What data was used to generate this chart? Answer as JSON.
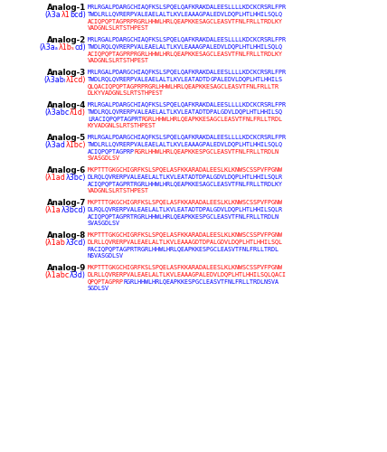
{
  "bg": "#ffffff",
  "analogs": [
    {
      "name": "Analog-1",
      "sublabel": [
        [
          "(λ3a",
          "#0000ff"
        ],
        [
          "λ1",
          "#ff0000"
        ],
        [
          "bcd)",
          "#0000ff"
        ]
      ],
      "seq": [
        [
          [
            "MRLRGALPDARGCHIAQFKSLSPQELQAFKRAKDALEESLLLLKDCKCRSRLFPR",
            "#0000ff"
          ]
        ],
        [
          [
            "TWDLRLLQVRERPVALEAELALTLKVLEAAAGPALEDVLDQPLHTLHHILSQLQ",
            "#0000ff"
          ]
        ],
        [
          [
            "ACIQPQPTAGPRPRGRLHHWLHRLQEAPKKESAGCLEASVTFNLFRLLTRDLKY",
            "#ff0000"
          ]
        ],
        [
          [
            "VADGNLSLRTSTHPEST",
            "#ff0000"
          ]
        ]
      ]
    },
    {
      "name": "Analog-2",
      "sublabel": [
        [
          "(λ3aₐ",
          "#0000ff"
        ],
        [
          "λ1bₛ",
          "#ff0000"
        ],
        [
          "cd)",
          "#0000ff"
        ]
      ],
      "seq": [
        [
          [
            "MRLRGALPDARGCHIAQFKSLSPQELQAFKRAKDALEESLLLLKDCKCRSRLFPR",
            "#0000ff"
          ]
        ],
        [
          [
            "TWDLRQLQVRERPVALEAELALTLKVLEAAAGPALEDVLDQPLHTLHHILSQLQ",
            "#0000ff"
          ]
        ],
        [
          [
            "ACIQPQPTAGPRPRGRLHHWLHRLQEAPKKESAGCLEASVTFNLFRLLTRDLKY",
            "#ff0000"
          ]
        ],
        [
          [
            "VADGNLSLRTSTHPEST",
            "#ff0000"
          ]
        ]
      ]
    },
    {
      "name": "Analog-3",
      "sublabel": [
        [
          "(λ3abₗ",
          "#0000ff"
        ],
        [
          "λ1cd)",
          "#ff0000"
        ]
      ],
      "seq": [
        [
          [
            "MRLRGALPDARGCHIAQFKSLSPQELQAFKRAKDALEESLLLLKDCKCRSRLFPR",
            "#0000ff"
          ]
        ],
        [
          [
            "TWDLRQLQVRERPVALEAELALTLKVLEATADTD",
            "#0000ff"
          ],
          [
            "GPALEDVLDQPLHTLHHILS",
            "#0000ff"
          ]
        ],
        [
          [
            "QLQACIQPQPTAGPRPRGRLHHWLHRLQEAPKKESAGCLEASVTFNLFRLLTR",
            "#ff0000"
          ]
        ],
        [
          [
            "DLKYVADGNLSLRTSTHPEST",
            "#ff0000"
          ]
        ]
      ]
    },
    {
      "name": "Analog-4",
      "sublabel": [
        [
          "(λ3abc",
          "#0000ff"
        ],
        [
          "λ1d)",
          "#ff0000"
        ]
      ],
      "seq": [
        [
          [
            "MRLRGALPDARGCHIAQFKSLSPQELQAFKRAKDALEESLLLLKDCKCRSRLFPR",
            "#0000ff"
          ]
        ],
        [
          [
            "TWDLRQLQVRERPVALEAELALTLKVLEATADTDPALGDVLDQPLHTLHHILSQ",
            "#0000ff"
          ]
        ],
        [
          [
            "LRACIQPQPTAGPRT",
            "#0000ff"
          ],
          [
            "RGRLHHWLHRLQEAPKKESAGCLEASVTFNLFRLLTRDL",
            "#ff0000"
          ]
        ],
        [
          [
            "KYVADGNLSLRTSTHPEST",
            "#ff0000"
          ]
        ]
      ]
    },
    {
      "name": "Analog-5",
      "sublabel": [
        [
          "(λ3ad",
          "#0000ff"
        ],
        [
          "λ1bc)",
          "#ff0000"
        ]
      ],
      "seq": [
        [
          [
            "MRLRGALPDARGCHIAQFKSLSPQELQAFKRAKDALEESLLLLKDCKCRSRLFPR",
            "#0000ff"
          ]
        ],
        [
          [
            "TWDLRLLQVRERPVALEAELALTLKVLEAAAGPALEDVLDQPLHTLHHILSQLQ",
            "#0000ff"
          ]
        ],
        [
          [
            "ACIQPQPTAGPRP",
            "#0000ff"
          ],
          [
            "RGRLHHWLHRLQEAPKKESPGCLEASVTFNLFRLLTRDLN",
            "#ff0000"
          ]
        ],
        [
          [
            "SVASGDLSV",
            "#ff0000"
          ]
        ]
      ]
    },
    {
      "name": "Analog-6",
      "sublabel": [
        [
          "(λ1ad",
          "#ff0000"
        ],
        [
          "λ3bc)",
          "#0000ff"
        ]
      ],
      "seq": [
        [
          [
            "MKPTTTGKGCHIGRFKSLSPQELASFKKARADALEESLKLKNWSCSSPVFPGNW",
            "#ff0000"
          ]
        ],
        [
          [
            "DLRQLQVRERPVALEAELALTLKVLEATADTDPALGDVLDQPLHTLHHILSQLR",
            "#0000ff"
          ]
        ],
        [
          [
            "ACIQPQPTAGPRTRGRLHHWLHRLQEAPKKESAGCLEASVTFNLFRLLTRDLKY",
            "#0000ff"
          ]
        ],
        [
          [
            "VADGNLSLRTSTHPEST",
            "#ff0000"
          ]
        ]
      ]
    },
    {
      "name": "Analog-7",
      "sublabel": [
        [
          "(λ1a",
          "#ff0000"
        ],
        [
          "λ3bcd)",
          "#0000ff"
        ]
      ],
      "seq": [
        [
          [
            "MKPTTTGKGCHIGRFKSLSPQELASFKKARADALEESLKLKNWSCSSPVFPGNW",
            "#ff0000"
          ]
        ],
        [
          [
            "DLRQLQVRERPVALEAELALTLKVLEATADTDPALGDVLDQPLHTLHHILSQLR",
            "#0000ff"
          ]
        ],
        [
          [
            "ACIQPQPTAGPRTRGRLHHWLHRLQEAPKKESPGCLEASVTFNLFRLLTRDLN",
            "#0000ff"
          ]
        ],
        [
          [
            "SVASGDLSV",
            "#0000ff"
          ]
        ]
      ]
    },
    {
      "name": "Analog-8",
      "sublabel": [
        [
          "(λ1ab",
          "#ff0000"
        ],
        [
          "λ3cd)",
          "#0000ff"
        ]
      ],
      "seq": [
        [
          [
            "MKPTTTGKGCHIGRFKSLSPQELASFKKARADALEESLKLKNWSCSSPVFPGNW",
            "#ff0000"
          ]
        ],
        [
          [
            "DLRLLQVRERPVALEAELALTLKVLEAAAGDTDPALGDVLDQPLHTLHHILSQL",
            "#ff0000"
          ]
        ],
        [
          [
            "RACIQPQPTAGPRTRGRLHHWLHRLQEAPKKESPGCLEASVTFNLFRLLTRDL",
            "#0000ff"
          ]
        ],
        [
          [
            "NSVASGDLSV",
            "#0000ff"
          ]
        ]
      ]
    },
    {
      "name": "Analog-9",
      "sublabel": [
        [
          "(λ1abc",
          "#ff0000"
        ],
        [
          "λ3d)",
          "#0000ff"
        ]
      ],
      "seq": [
        [
          [
            "MKPTTTGKGCHIGRFKSLSPQELASFKKARADALEESLKLKNWSCSSPVFPGNW",
            "#ff0000"
          ]
        ],
        [
          [
            "DLRLLQVRERPVALEAELALTLKVLEAAAGPALEDVLDQPLHTLHHILSQLQACI",
            "#ff0000"
          ]
        ],
        [
          [
            "QPQPTAGPRP",
            "#ff0000"
          ],
          [
            "RGRLHHWLHRLQEAPKKESPGCLEASVTFNLFRLLTRDLNSVA",
            "#0000ff"
          ]
        ],
        [
          [
            "SGDLSV",
            "#0000ff"
          ]
        ]
      ]
    }
  ]
}
